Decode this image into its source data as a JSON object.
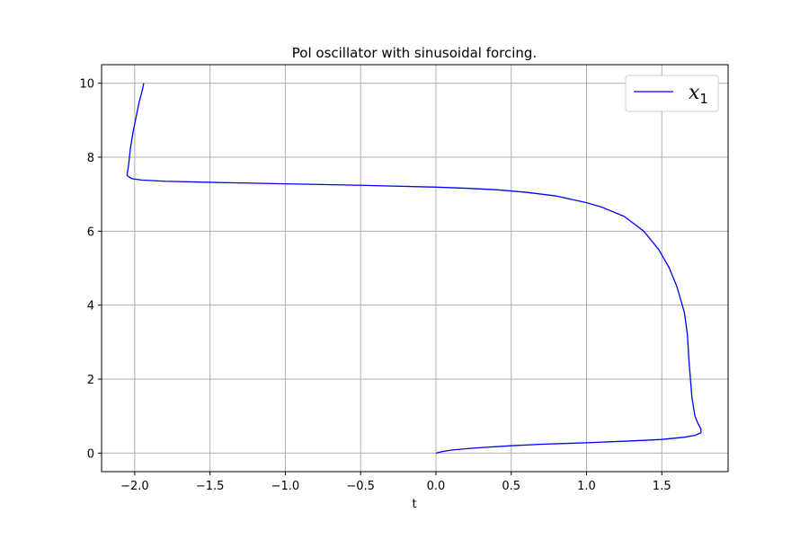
{
  "chart_data": {
    "type": "line",
    "title": "Pol oscillator with sinusoidal forcing.",
    "xlabel": "t",
    "ylabel": "",
    "xlim": [
      -2.22,
      1.94
    ],
    "ylim": [
      -0.5,
      10.5
    ],
    "xticks": [
      -2.0,
      -1.5,
      -1.0,
      -0.5,
      0.0,
      0.5,
      1.0,
      1.5
    ],
    "xtick_labels": [
      "−2.0",
      "−1.5",
      "−1.0",
      "−0.5",
      "0.0",
      "0.5",
      "1.0",
      "1.5"
    ],
    "yticks": [
      0,
      2,
      4,
      6,
      8,
      10
    ],
    "ytick_labels": [
      "0",
      "2",
      "4",
      "6",
      "8",
      "10"
    ],
    "grid": true,
    "legend": {
      "position": "top-right",
      "entry_base": "x",
      "entry_sub": "1"
    },
    "series": [
      {
        "name": "x1",
        "color": "#0000ff",
        "points": [
          [
            0.0,
            0.0
          ],
          [
            0.05,
            0.05
          ],
          [
            0.1,
            0.08
          ],
          [
            0.2,
            0.12
          ],
          [
            0.3,
            0.15
          ],
          [
            0.5,
            0.2
          ],
          [
            0.7,
            0.24
          ],
          [
            1.0,
            0.28
          ],
          [
            1.3,
            0.33
          ],
          [
            1.5,
            0.37
          ],
          [
            1.65,
            0.43
          ],
          [
            1.72,
            0.48
          ],
          [
            1.76,
            0.55
          ],
          [
            1.76,
            0.65
          ],
          [
            1.74,
            0.8
          ],
          [
            1.72,
            1.0
          ],
          [
            1.7,
            1.5
          ],
          [
            1.68,
            2.5
          ],
          [
            1.67,
            3.2
          ],
          [
            1.65,
            3.8
          ],
          [
            1.6,
            4.5
          ],
          [
            1.55,
            5.0
          ],
          [
            1.48,
            5.5
          ],
          [
            1.38,
            6.0
          ],
          [
            1.25,
            6.4
          ],
          [
            1.1,
            6.65
          ],
          [
            1.0,
            6.77
          ],
          [
            0.8,
            6.95
          ],
          [
            0.6,
            7.05
          ],
          [
            0.4,
            7.12
          ],
          [
            0.2,
            7.16
          ],
          [
            0.0,
            7.19
          ],
          [
            -0.5,
            7.24
          ],
          [
            -1.0,
            7.28
          ],
          [
            -1.5,
            7.32
          ],
          [
            -1.8,
            7.35
          ],
          [
            -1.95,
            7.38
          ],
          [
            -2.02,
            7.42
          ],
          [
            -2.05,
            7.5
          ],
          [
            -2.05,
            7.55
          ],
          [
            -2.04,
            7.8
          ],
          [
            -2.03,
            8.2
          ],
          [
            -2.01,
            8.7
          ],
          [
            -1.99,
            9.1
          ],
          [
            -1.97,
            9.5
          ],
          [
            -1.95,
            9.8
          ],
          [
            -1.94,
            10.0
          ]
        ]
      }
    ]
  }
}
